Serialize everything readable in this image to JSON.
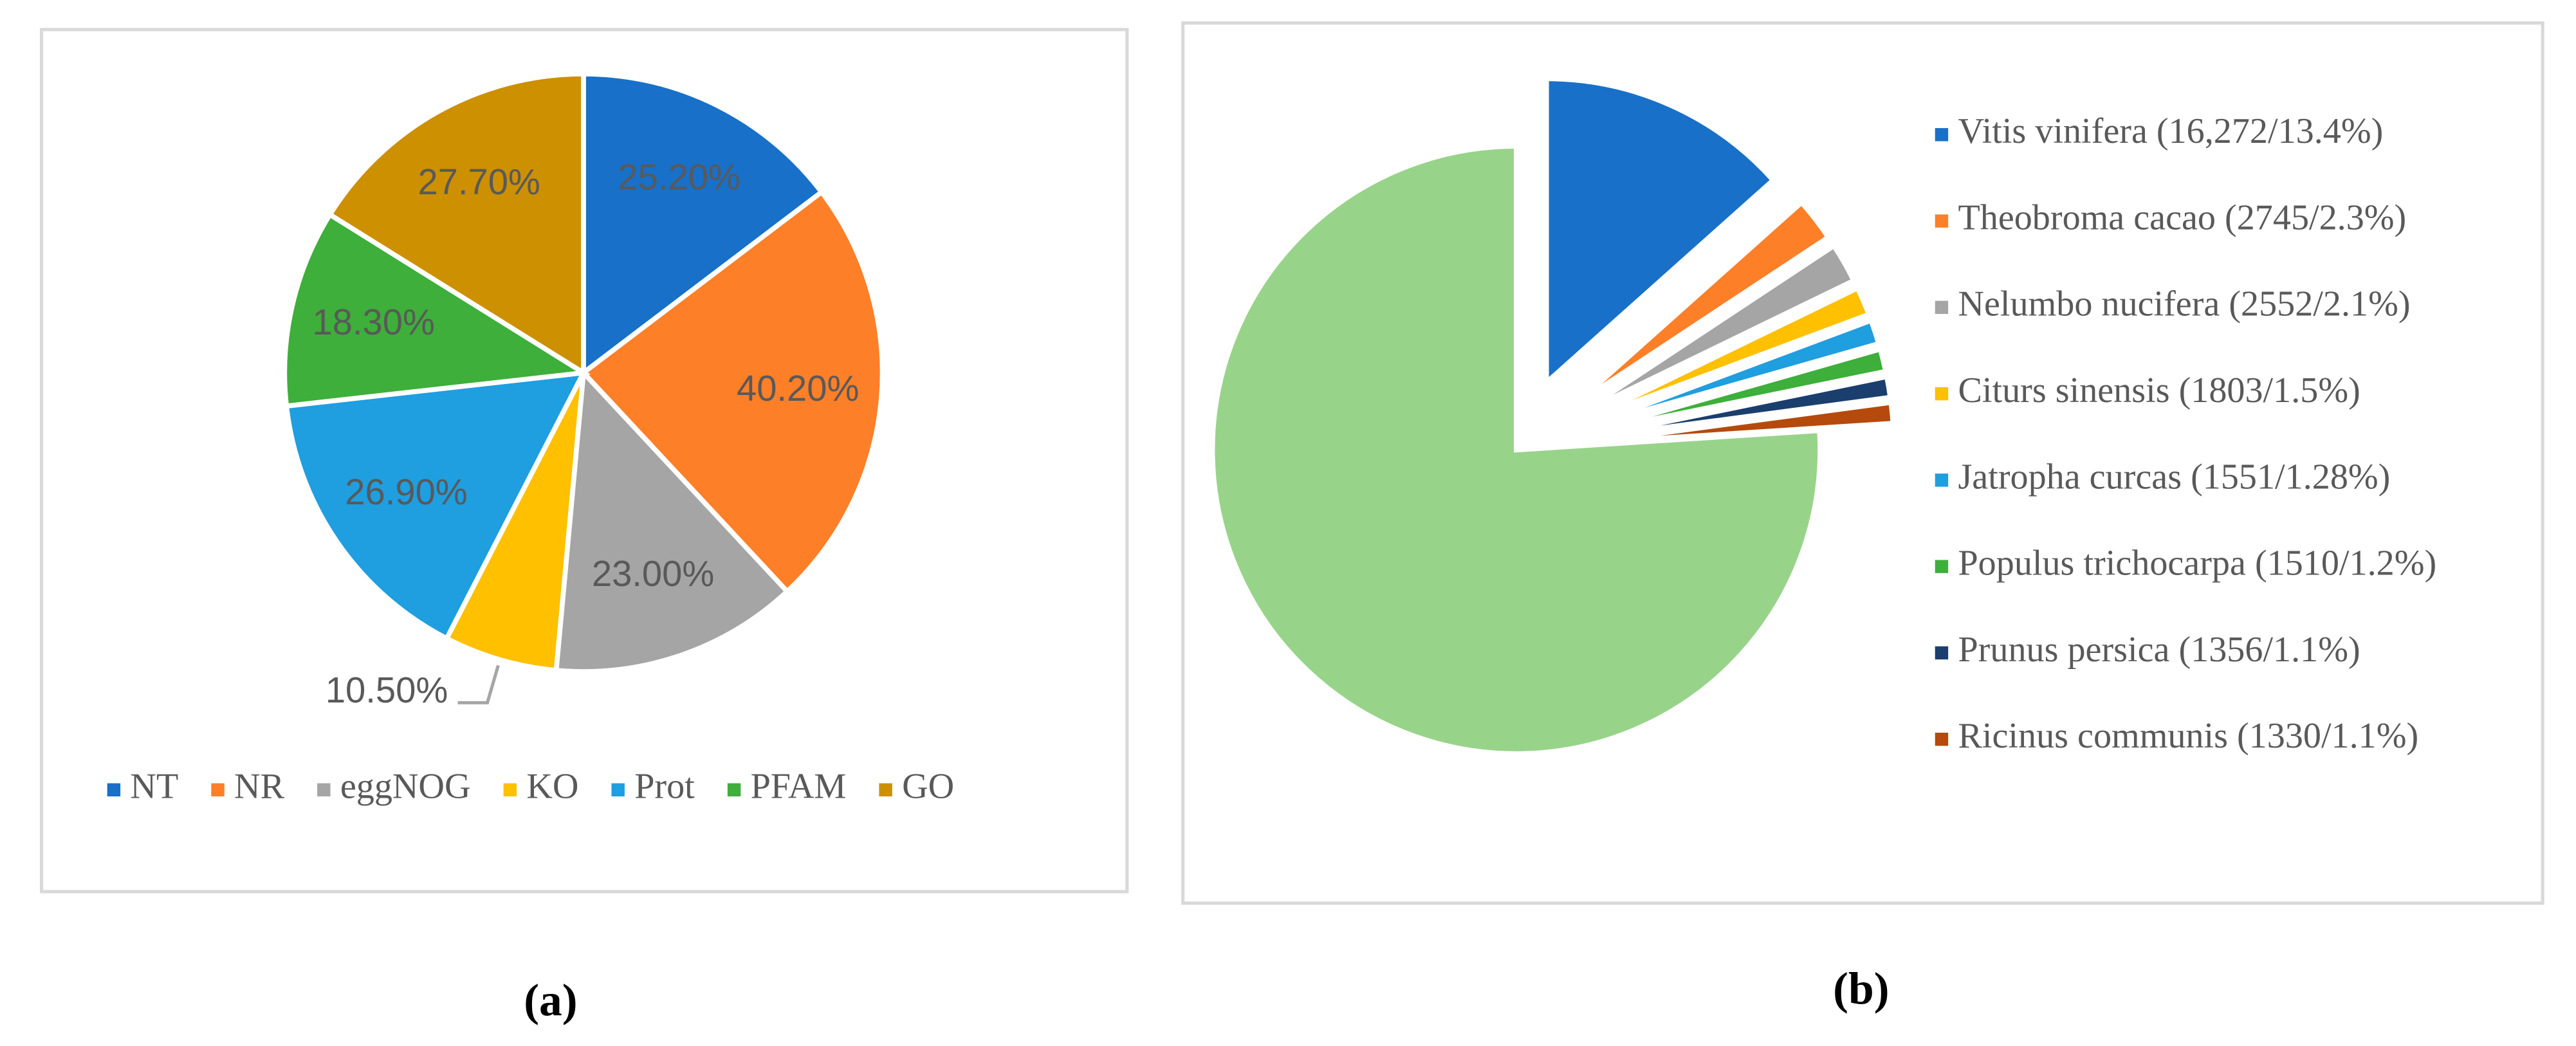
{
  "chart_data": [
    {
      "type": "pie",
      "caption": "(a)",
      "categories": [
        "NT",
        "NR",
        "eggNOG",
        "KO",
        "Prot",
        "PFAM",
        "GO"
      ],
      "values": [
        25.2,
        40.2,
        23.0,
        10.5,
        26.9,
        18.3,
        27.7
      ],
      "value_labels": [
        "25.20%",
        "40.20%",
        "23.00%",
        "10.50%",
        "26.90%",
        "18.30%",
        "27.70%"
      ],
      "colors": [
        "#1870c8",
        "#fd7f28",
        "#a5a5a5",
        "#ffc000",
        "#1f9ee0",
        "#3daf3a",
        "#cc9000"
      ],
      "legend": "bottom"
    },
    {
      "type": "pie",
      "caption": "(b)",
      "categories": [
        "Vitis vinifera (16,272/13.4%)",
        "Theobroma cacao (2745/2.3%)",
        "Nelumbo nucifera (2552/2.1%)",
        "Citurs sinensis (1803/1.5%)",
        "Jatropha curcas (1551/1.28%)",
        "Populus trichocarpa (1510/1.2%)",
        "Prunus persica (1356/1.1%)",
        "Ricinus communis (1330/1.1%)",
        null
      ],
      "values": [
        13.4,
        2.3,
        2.1,
        1.5,
        1.28,
        1.2,
        1.1,
        1.1,
        76.0
      ],
      "colors": [
        "#1870c8",
        "#fd7f28",
        "#a5a5a5",
        "#ffc000",
        "#1f9ee0",
        "#3daf3a",
        "#1a3f6e",
        "#b54a0c",
        "#98d38a"
      ],
      "legend": "right"
    }
  ]
}
